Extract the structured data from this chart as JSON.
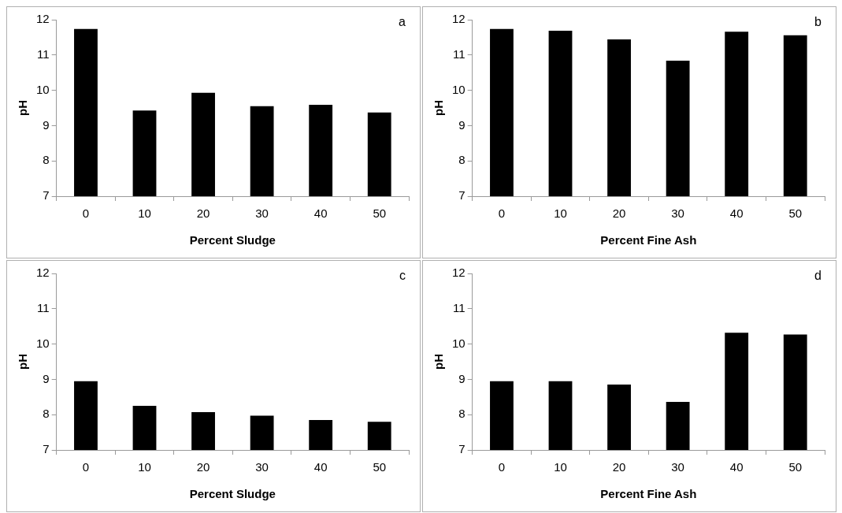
{
  "chart_data": [
    {
      "type": "bar",
      "categories": [
        "0",
        "10",
        "20",
        "30",
        "40",
        "50"
      ],
      "values": [
        11.74,
        9.43,
        9.93,
        9.55,
        9.59,
        9.37
      ],
      "color": "#000000",
      "xlabel": "Percent Sludge",
      "ylabel": "pH",
      "ylim": [
        7,
        12
      ],
      "yticks": [
        7,
        8,
        9,
        10,
        11,
        12
      ],
      "grid": false,
      "legend": false,
      "annotations": [
        "a"
      ]
    },
    {
      "type": "bar",
      "categories": [
        "0",
        "10",
        "20",
        "30",
        "40",
        "50"
      ],
      "values": [
        11.74,
        11.69,
        11.44,
        10.84,
        11.66,
        11.56
      ],
      "color": "#000000",
      "xlabel": "Percent Fine Ash",
      "ylabel": "pH",
      "ylim": [
        7,
        12
      ],
      "yticks": [
        7,
        8,
        9,
        10,
        11,
        12
      ],
      "grid": false,
      "legend": false,
      "annotations": [
        "b"
      ]
    },
    {
      "type": "bar",
      "categories": [
        "0",
        "10",
        "20",
        "30",
        "40",
        "50"
      ],
      "values": [
        8.95,
        8.25,
        8.07,
        7.97,
        7.85,
        7.8
      ],
      "color": "#000000",
      "xlabel": "Percent Sludge",
      "ylabel": "pH",
      "ylim": [
        7,
        12
      ],
      "yticks": [
        7,
        8,
        9,
        10,
        11,
        12
      ],
      "grid": false,
      "legend": false,
      "annotations": [
        "c"
      ]
    },
    {
      "type": "bar",
      "categories": [
        "0",
        "10",
        "20",
        "30",
        "40",
        "50"
      ],
      "values": [
        8.95,
        8.95,
        8.85,
        8.36,
        10.32,
        10.27
      ],
      "color": "#000000",
      "xlabel": "Percent Fine Ash",
      "ylabel": "pH",
      "ylim": [
        7,
        12
      ],
      "yticks": [
        7,
        8,
        9,
        10,
        11,
        12
      ],
      "grid": false,
      "legend": false,
      "annotations": [
        "d"
      ]
    }
  ]
}
